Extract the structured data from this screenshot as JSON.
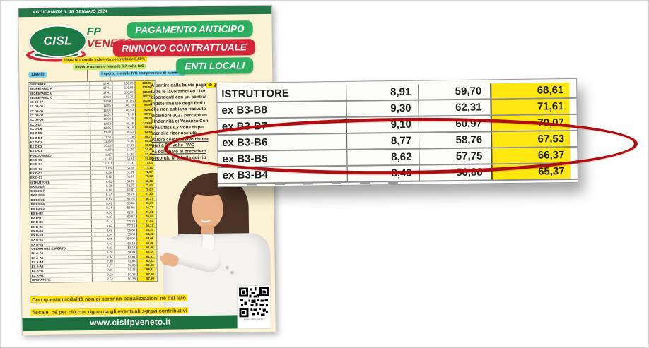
{
  "flyer": {
    "topbar": "AGGIORNATA IL 18 GENNAIO 2024",
    "logo": {
      "cisl": "CISL",
      "fp": "FP",
      "veneto": "VENETO"
    },
    "banners": [
      {
        "label": "PAGAMENTO ANTICIPO",
        "color": "#2daf5f"
      },
      {
        "label": "RINNOVO CONTRATTUALE",
        "color": "#d4263a"
      },
      {
        "label": "ENTI LOCALI",
        "color": "#2daf5f"
      }
    ],
    "callouts": {
      "yellow": "Importo mensile indennità contrattuale 0,50%",
      "green": "Importo aumento mensile 6,7 volte IVC",
      "blue": "Importo mensile IVC comprensivo di aumento",
      "livello": "Livello"
    },
    "table": {
      "columns": [
        "Livello",
        "Indennità contrattuale 0,50%",
        "Aumento mensile 6,7 volte IVC",
        "IVC mensile comprensiva di aumento"
      ],
      "rows": [
        [
          "DIRIGENTE",
          "17,41",
          "116,65",
          "134,06"
        ],
        [
          "SEGRETARIO A",
          "17,41",
          "116,65",
          "134,06"
        ],
        [
          "SEGRETARIO B",
          "17,41",
          "116,65",
          "134,06"
        ],
        [
          "SEGRETARIO C",
          "13,92",
          "93,26",
          "107,18"
        ],
        [
          "ex D3-D7",
          "13,50",
          "90,45",
          "103,95"
        ],
        [
          "ex D3-D6",
          "12,85",
          "86,10",
          "98,95"
        ],
        [
          "ex D3-D5",
          "12,02",
          "80,53",
          "92,55"
        ],
        [
          "ex D3-D4",
          "11,52",
          "77,18",
          "88,70"
        ],
        [
          "ex D3-D3",
          "11,09",
          "74,30",
          "85,39"
        ],
        [
          "ex D-D7",
          "13,50",
          "90,45",
          "103,95"
        ],
        [
          "ex D-D6",
          "12,85",
          "86,10",
          "98,95"
        ],
        [
          "ex D-D5",
          "12,02",
          "80,53",
          "92,55"
        ],
        [
          "ex D-D4",
          "11,52",
          "77,18",
          "88,70"
        ],
        [
          "ex D-D3",
          "11,09",
          "74,30",
          "85,39"
        ],
        [
          "ex D-D2",
          "10,13",
          "67,87",
          "78,00"
        ],
        [
          "ex D-D1",
          "9,67",
          "64,79",
          "74,46"
        ],
        [
          "FUNZIONARIO",
          "9,67",
          "64,79",
          "74,46"
        ],
        [
          "ex C-C5",
          "10,27",
          "68,81",
          "79,08"
        ],
        [
          "ex C-C4",
          "10,00",
          "67,00",
          "77,00"
        ],
        [
          "ex C-C3",
          "9,65",
          "64,66",
          "74,31"
        ],
        [
          "ex C-C2",
          "9,36",
          "62,71",
          "72,07"
        ],
        [
          "ex C-C1",
          "9,12",
          "61,10",
          "70,22"
        ],
        [
          "ISTRUTTORE",
          "8,91",
          "59,70",
          "68,61"
        ],
        [
          "ex B3-B8",
          "9,30",
          "62,31",
          "71,61"
        ],
        [
          "ex B3-B7",
          "9,10",
          "60,97",
          "70,07"
        ],
        [
          "ex B3-B6",
          "8,77",
          "58,76",
          "67,53"
        ],
        [
          "ex B3-B5",
          "8,62",
          "57,75",
          "66,37"
        ],
        [
          "ex B3-B4",
          "8,49",
          "56,88",
          "65,37"
        ],
        [
          "ex B3-B3",
          "8,34",
          "55,88",
          "64,22"
        ],
        [
          "ex B-B8",
          "9,30",
          "62,31",
          "71,61"
        ],
        [
          "ex B-B7",
          "9,10",
          "60,97",
          "70,07"
        ],
        [
          "ex B-B6",
          "8,77",
          "58,76",
          "67,53"
        ],
        [
          "ex B-B5",
          "8,62",
          "57,75",
          "66,37"
        ],
        [
          "ex B-B4",
          "8,49",
          "56,88",
          "65,37"
        ],
        [
          "ex B-B3",
          "8,34",
          "55,88",
          "64,22"
        ],
        [
          "ex B-B2",
          "8,06",
          "54,00",
          "62,06"
        ],
        [
          "ex B-B1",
          "7,93",
          "53,13",
          "61,06"
        ],
        [
          "OPERATORE ESPERTO",
          "7,93",
          "53,13",
          "61,06"
        ],
        [
          "ex A-A6",
          "8,20",
          "54,94",
          "63,14"
        ],
        [
          "ex A-A5",
          "8,04",
          "53,87",
          "61,91"
        ],
        [
          "ex A-A4",
          "7,90",
          "52,93",
          "60,83"
        ],
        [
          "ex A-A3",
          "7,77",
          "52,06",
          "59,83"
        ],
        [
          "ex A-A2",
          "7,65",
          "51,26",
          "58,91"
        ],
        [
          "ex A-A1",
          "7,52",
          "50,38",
          "57,90"
        ],
        [
          "OPERATORE",
          "7,52",
          "50,38",
          "57,90"
        ]
      ]
    },
    "paragraph": {
      "lines": [
        "A partire dalla busta paga",
        "tutte le lavoratrici ed i lav",
        "dipendenti con un contrat",
        "indeterminato degli Enti L",
        "che non abbiano ricevuto",
        "dicembre 2023 percepiran",
        "l'Indennità di Vacanza Con",
        "rivalutata 6,7 volte rispet",
        "mensile riconosciuto",
        "valore complessivo risulta",
        "pari a 6,7 volte l'IVC",
        "va sommato al precedent",
        "secondo la tabella qui rip"
      ],
      "line1_highlight": "di gennaio 2024",
      "underline_from": 9
    },
    "note": [
      "Con questa modalità non ci saranno penalizzazioni né dal lato",
      "fiscale, né per ciò che riguarda gli eventuali sgravi contributivi"
    ],
    "footer": {
      "url": "www.cislfpveneto.it",
      "qr_caption": "www.cislfpveneto.it"
    }
  },
  "overlay": {
    "rows": [
      [
        "ISTRUTTORE",
        "8,91",
        "59,70",
        "68,61"
      ],
      [
        "ex B3-B8",
        "9,30",
        "62,31",
        "71,61"
      ],
      [
        "ex B3-B7",
        "9,10",
        "60,97",
        "70,07"
      ],
      [
        "ex B3-B6",
        "8,77",
        "58,76",
        "67,53"
      ],
      [
        "ex B3-B5",
        "8,62",
        "57,75",
        "66,37"
      ],
      [
        "ex B3-B4",
        "8,49",
        "56,88",
        "65,37"
      ]
    ],
    "highlighted_row": "ex B3-B6"
  },
  "colors": {
    "flyer_bg": "#fbf3d3",
    "green_dark": "#26764a",
    "green_pill": "#2daf5f",
    "red_pill": "#d4263a",
    "yellow_highlight": "#ffe000",
    "table_yellow": "#ffe600",
    "overlay_yellow": "#ffe70f",
    "circle_red": "#b00d10"
  }
}
